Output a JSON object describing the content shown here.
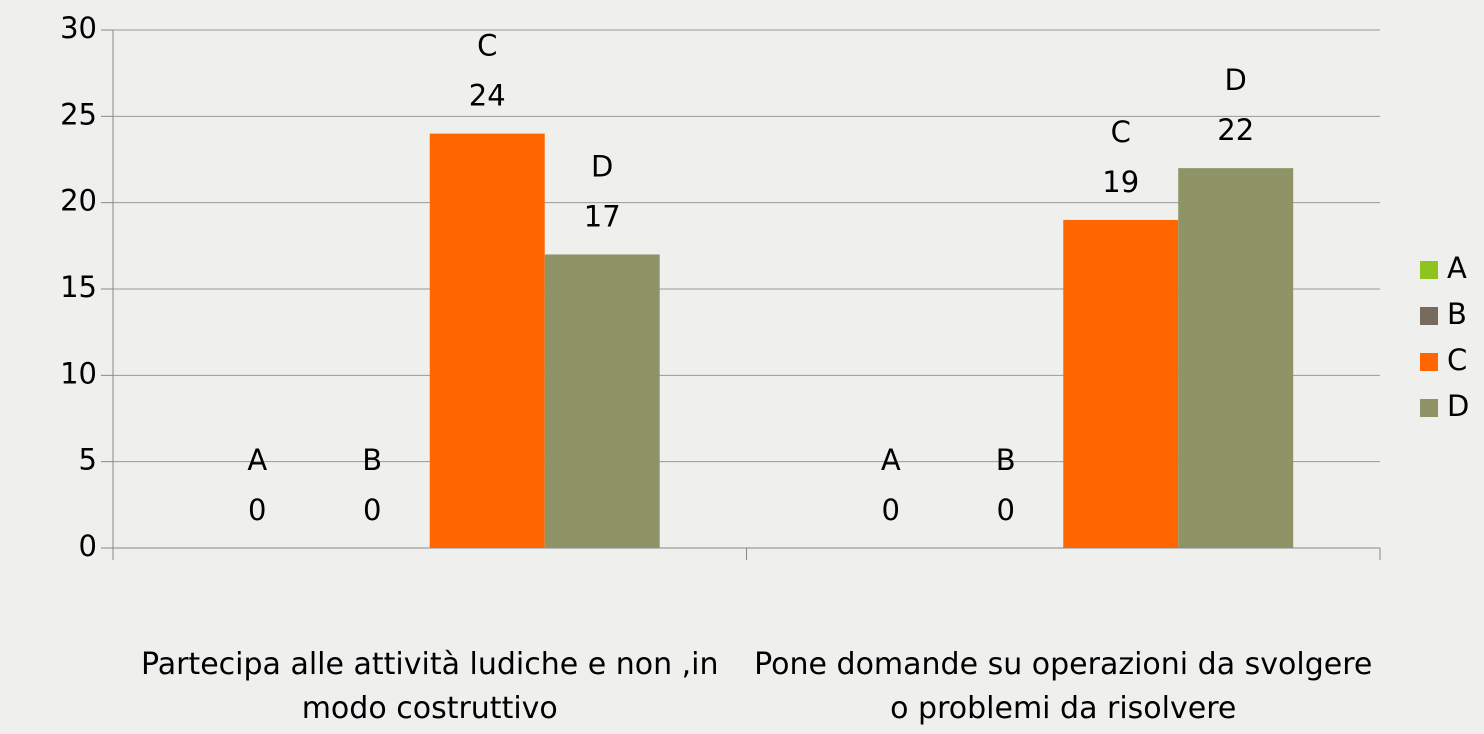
{
  "chart_data": {
    "type": "bar",
    "categories": [
      "Partecipa alle attività ludiche e non ,in modo costruttivo",
      "Pone domande su operazioni da svolgere o problemi da risolvere"
    ],
    "series": [
      {
        "name": "A",
        "color": "#8fc31f",
        "values": [
          0,
          0
        ]
      },
      {
        "name": "B",
        "color": "#776b5d",
        "values": [
          0,
          0
        ]
      },
      {
        "name": "C",
        "color": "#ff6600",
        "values": [
          24,
          19
        ]
      },
      {
        "name": "D",
        "color": "#8f9466",
        "values": [
          17,
          22
        ]
      }
    ],
    "ylim": [
      0,
      30
    ],
    "yticks": [
      0,
      5,
      10,
      15,
      20,
      25,
      30
    ],
    "grid": true,
    "legend": "right"
  }
}
